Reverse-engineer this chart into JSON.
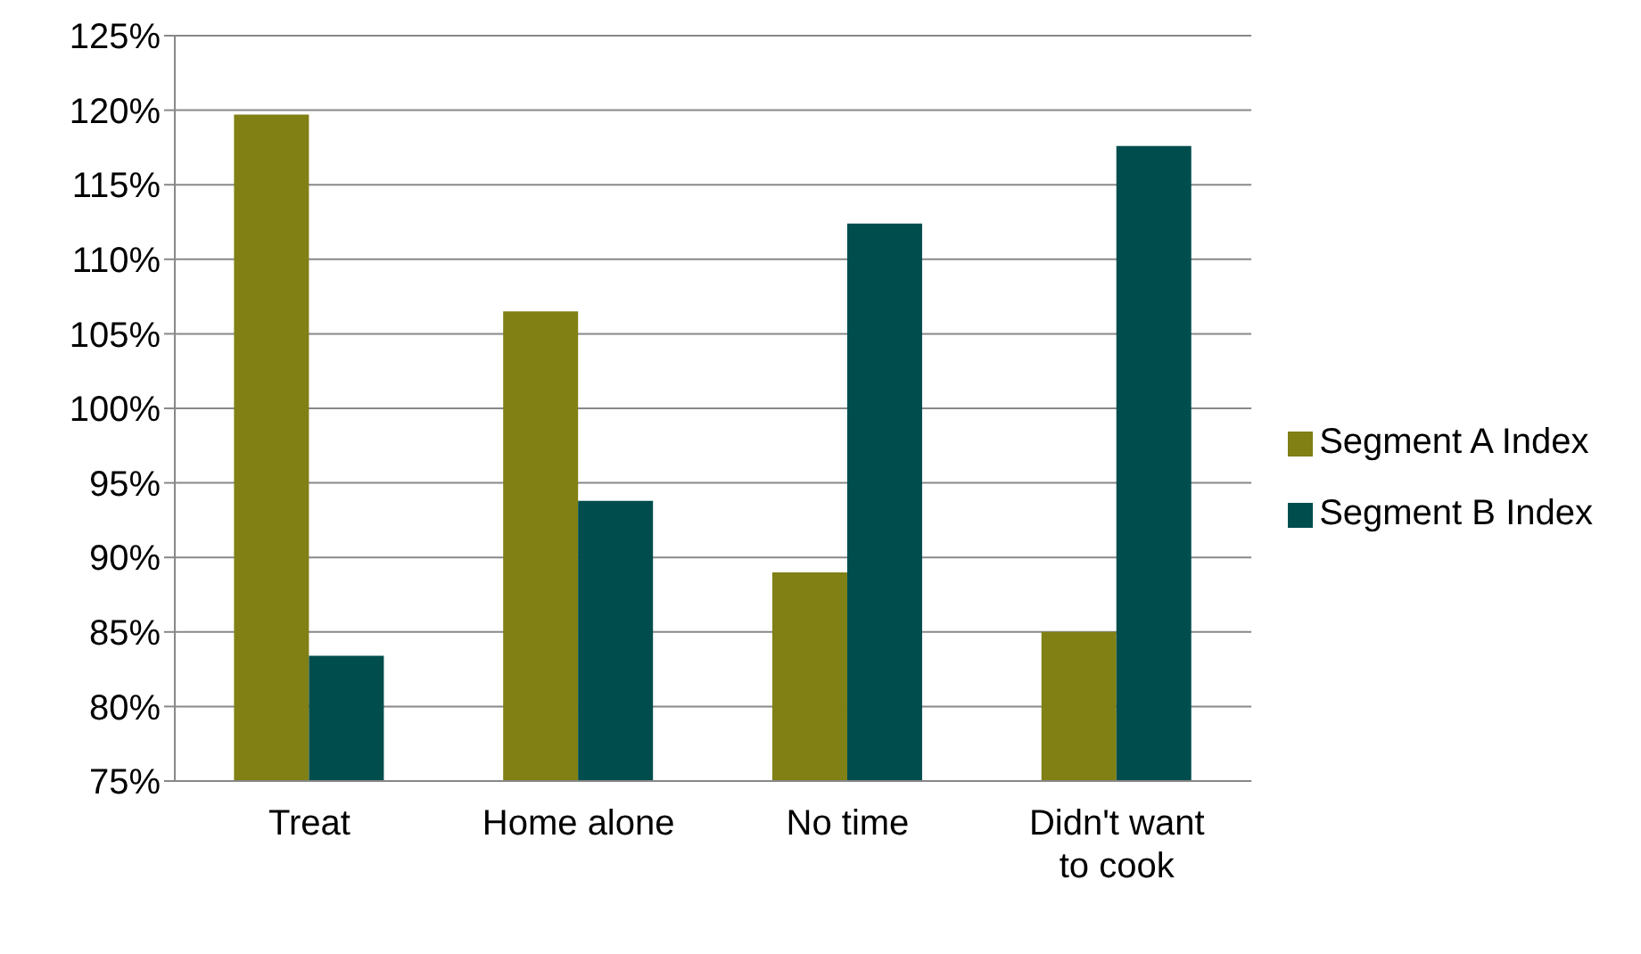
{
  "chart_data": {
    "type": "bar",
    "categories": [
      "Treat",
      "Home alone",
      "No time",
      "Didn't want to cook"
    ],
    "series": [
      {
        "name": "Segment A Index",
        "color": "#808015",
        "values": [
          119.7,
          106.5,
          89.0,
          85.0
        ]
      },
      {
        "name": "Segment B Index",
        "color": "#004d4d",
        "values": [
          83.4,
          93.8,
          112.4,
          117.6
        ]
      }
    ],
    "ylim": [
      75,
      125
    ],
    "yticks": [
      {
        "value": 75,
        "label": "75%"
      },
      {
        "value": 80,
        "label": "80%"
      },
      {
        "value": 85,
        "label": "85%"
      },
      {
        "value": 90,
        "label": "90%"
      },
      {
        "value": 95,
        "label": "95%"
      },
      {
        "value": 100,
        "label": "100%"
      },
      {
        "value": 105,
        "label": "105%"
      },
      {
        "value": 110,
        "label": "110%"
      },
      {
        "value": 115,
        "label": "115%"
      },
      {
        "value": 120,
        "label": "120%"
      },
      {
        "value": 125,
        "label": "125%"
      }
    ],
    "grid": "y",
    "legend": "right"
  }
}
